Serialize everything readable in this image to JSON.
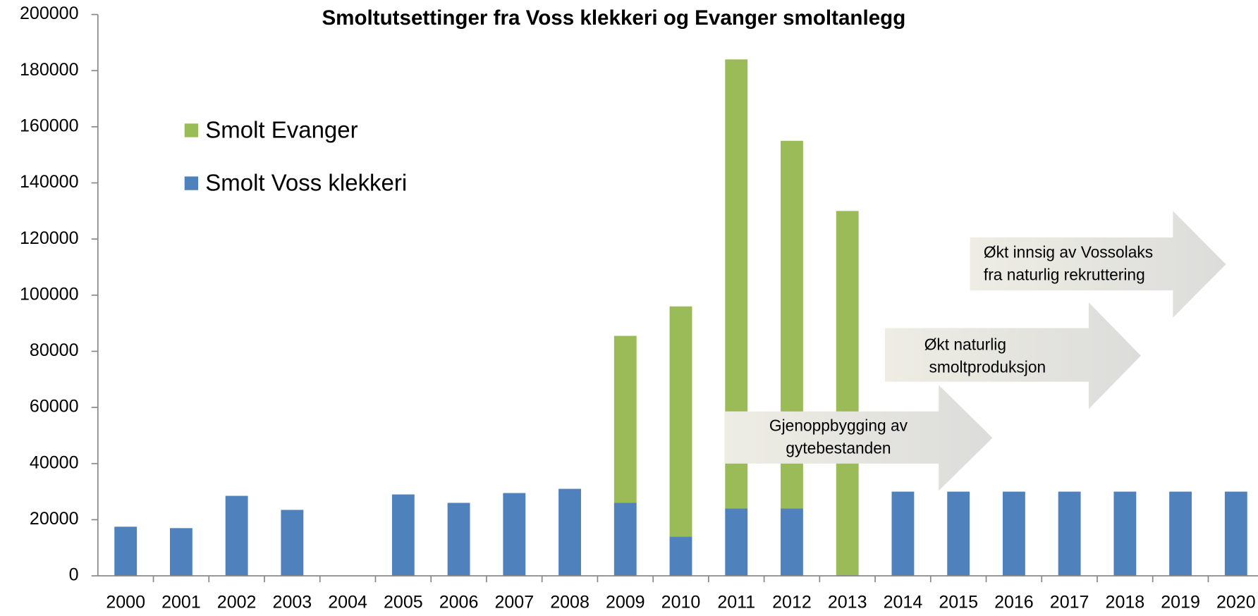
{
  "chart_data": {
    "type": "bar",
    "stacked": true,
    "title": "Smoltutsettinger fra Voss klekkeri og Evanger smoltanlegg",
    "categories": [
      "2000",
      "2001",
      "2002",
      "2003",
      "2004",
      "2005",
      "2006",
      "2007",
      "2008",
      "2009",
      "2010",
      "2011",
      "2012",
      "2013",
      "2014",
      "2015",
      "2016",
      "2017",
      "2018",
      "2019",
      "2020"
    ],
    "series": [
      {
        "name": "Smolt Voss klekkeri",
        "color": "#4f81bd",
        "values": [
          17500,
          17000,
          28500,
          23500,
          null,
          29000,
          26000,
          29500,
          31000,
          26000,
          14000,
          24000,
          24000,
          null,
          30000,
          30000,
          30000,
          30000,
          30000,
          30000,
          30000
        ]
      },
      {
        "name": "Smolt Evanger",
        "color": "#9bbb59",
        "values": [
          null,
          null,
          null,
          null,
          null,
          null,
          null,
          null,
          null,
          59500,
          82000,
          160000,
          131000,
          130000,
          null,
          null,
          null,
          null,
          null,
          null,
          null
        ]
      }
    ],
    "ylim": [
      0,
      200000
    ],
    "yticks": [
      0,
      20000,
      40000,
      60000,
      80000,
      100000,
      120000,
      140000,
      160000,
      180000,
      200000
    ],
    "grid": false,
    "legend": "upper left",
    "annotations": [
      {
        "lines": [
          "Gjenoppbygging av",
          "gytebestanden"
        ]
      },
      {
        "lines": [
          "Økt naturlig",
          "smoltproduksjon"
        ]
      },
      {
        "lines": [
          "Økt innsig av Vossolaks",
          "fra naturlig rekruttering"
        ]
      }
    ]
  }
}
